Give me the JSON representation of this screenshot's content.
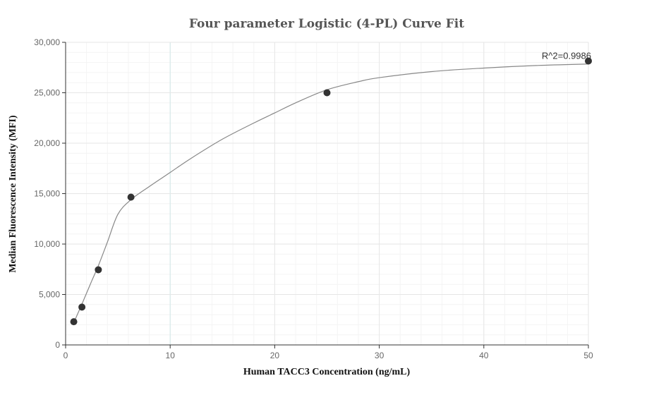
{
  "chart_data": {
    "type": "scatter",
    "title": "Four parameter Logistic (4-PL) Curve Fit",
    "xlabel": "Human TACC3 Concentration (ng/mL)",
    "ylabel": "Median Fluorescence Intensity (MFI)",
    "xlim": [
      0,
      50
    ],
    "ylim": [
      0,
      30000
    ],
    "x_ticks": [
      0,
      10,
      20,
      30,
      40,
      50
    ],
    "x_tick_labels": [
      "0",
      "10",
      "20",
      "30",
      "40",
      "50"
    ],
    "y_ticks": [
      0,
      5000,
      10000,
      15000,
      20000,
      25000,
      30000
    ],
    "y_tick_labels": [
      "0",
      "5,000",
      "10,000",
      "15,000",
      "20,000",
      "25,000",
      "30,000"
    ],
    "grid": true,
    "series": [
      {
        "kind": "points",
        "x": [
          0.78,
          1.56,
          3.13,
          6.25,
          25,
          50
        ],
        "y": [
          2300,
          3750,
          7450,
          14650,
          25000,
          28150
        ],
        "color": "#333333"
      },
      {
        "kind": "fit-curve",
        "x": [
          0.78,
          1.56,
          2.5,
          3.13,
          4,
          5,
          6.25,
          8,
          10,
          12,
          15,
          18,
          20,
          22,
          25,
          28,
          30,
          35,
          40,
          45,
          50
        ],
        "y": [
          2200,
          4050,
          6350,
          7850,
          10200,
          12950,
          14400,
          15700,
          17100,
          18500,
          20400,
          22000,
          23000,
          24000,
          25300,
          26100,
          26500,
          27100,
          27450,
          27700,
          27850
        ],
        "color": "#888888"
      }
    ],
    "annotations": [
      {
        "text": "R^2=0.9986",
        "x": 50,
        "y": 28150
      }
    ]
  }
}
